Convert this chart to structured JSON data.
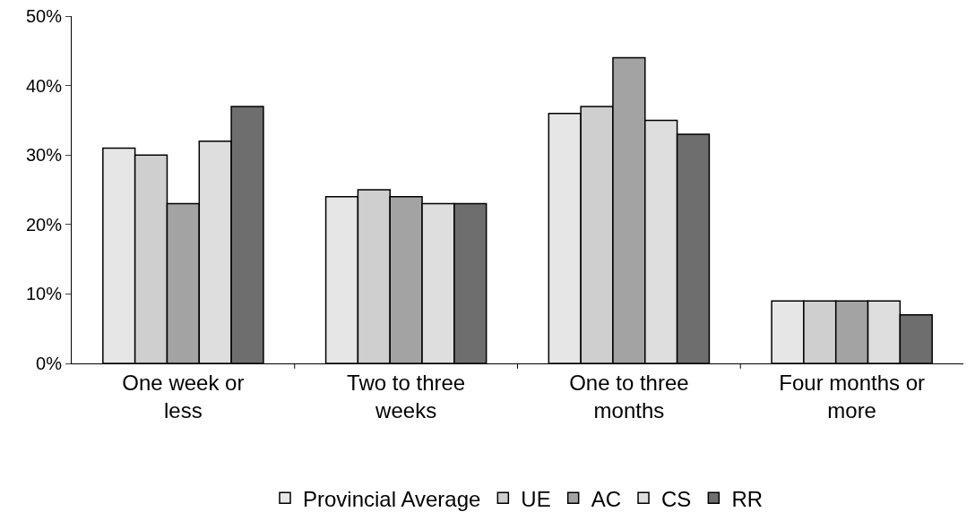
{
  "chart_data": {
    "type": "bar",
    "categories": [
      "One week or less",
      "Two to three weeks",
      "One to three months",
      "Four months or more"
    ],
    "series": [
      {
        "name": "Provincial Average",
        "color": "#e6e6e6",
        "values": [
          31,
          24,
          36,
          9
        ]
      },
      {
        "name": "UE",
        "color": "#cfcfcf",
        "values": [
          30,
          25,
          37,
          9
        ]
      },
      {
        "name": "AC",
        "color": "#a3a3a3",
        "values": [
          23,
          24,
          44,
          9
        ]
      },
      {
        "name": "CS",
        "color": "#dedede",
        "values": [
          32,
          23,
          35,
          9
        ]
      },
      {
        "name": "RR",
        "color": "#6e6e6e",
        "values": [
          37,
          23,
          33,
          7
        ]
      }
    ],
    "ylim": [
      0,
      50
    ],
    "yticks": [
      {
        "value": 0,
        "label": "0%"
      },
      {
        "value": 10,
        "label": "10%"
      },
      {
        "value": 20,
        "label": "20%"
      },
      {
        "value": 30,
        "label": "30%"
      },
      {
        "value": 40,
        "label": "40%"
      },
      {
        "value": 50,
        "label": "50%"
      }
    ],
    "grid": false,
    "legend": "bottom"
  }
}
